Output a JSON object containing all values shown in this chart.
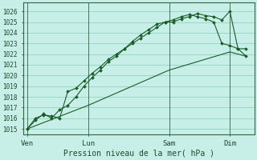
{
  "background_color": "#c8eee8",
  "grid_color": "#88ccbb",
  "line_color": "#1a5c28",
  "marker_color": "#1a5c28",
  "xlabel_text": "Pression niveau de la mer( hPa )",
  "yticks": [
    1015,
    1016,
    1017,
    1018,
    1019,
    1020,
    1021,
    1022,
    1023,
    1024,
    1025,
    1026
  ],
  "ylim": [
    1014.5,
    1026.8
  ],
  "xtick_labels": [
    "Ven",
    "Lun",
    "Sam",
    "Dim"
  ],
  "xtick_positions": [
    0,
    3,
    7,
    10
  ],
  "vlines": [
    0,
    3,
    7,
    10
  ],
  "series1_x": [
    0,
    0.4,
    0.8,
    1.2,
    1.6,
    2.0,
    2.4,
    2.8,
    3.2,
    3.6,
    4.0,
    4.4,
    4.8,
    5.2,
    5.6,
    6.0,
    6.4,
    6.8,
    7.2,
    7.6,
    8.0,
    8.4,
    8.8,
    9.2,
    9.6,
    10.0,
    10.4,
    10.8
  ],
  "series1_y": [
    1015.0,
    1015.8,
    1016.4,
    1016.0,
    1016.8,
    1017.2,
    1018.0,
    1019.0,
    1019.8,
    1020.5,
    1021.3,
    1021.8,
    1022.5,
    1023.0,
    1023.5,
    1024.0,
    1024.5,
    1025.0,
    1025.0,
    1025.3,
    1025.5,
    1025.8,
    1025.6,
    1025.5,
    1025.2,
    1026.0,
    1022.5,
    1022.5
  ],
  "series2_x": [
    0,
    0.4,
    0.8,
    1.2,
    1.6,
    2.0,
    2.4,
    2.8,
    3.2,
    3.6,
    4.0,
    4.4,
    4.8,
    5.2,
    5.6,
    6.0,
    6.4,
    6.8,
    7.2,
    7.6,
    8.0,
    8.4,
    8.8,
    9.2,
    9.6,
    10.0,
    10.4,
    10.8
  ],
  "series2_y": [
    1015.0,
    1016.0,
    1016.3,
    1016.2,
    1016.0,
    1018.5,
    1018.8,
    1019.5,
    1020.2,
    1020.8,
    1021.5,
    1022.0,
    1022.5,
    1023.2,
    1023.8,
    1024.3,
    1024.8,
    1025.0,
    1025.2,
    1025.5,
    1025.7,
    1025.5,
    1025.3,
    1025.0,
    1023.0,
    1022.8,
    1022.5,
    1021.8
  ],
  "series3_x": [
    0,
    3,
    7,
    10,
    10.8
  ],
  "series3_y": [
    1015.0,
    1017.2,
    1020.5,
    1022.2,
    1021.8
  ],
  "xlim": [
    -0.2,
    11.2
  ]
}
